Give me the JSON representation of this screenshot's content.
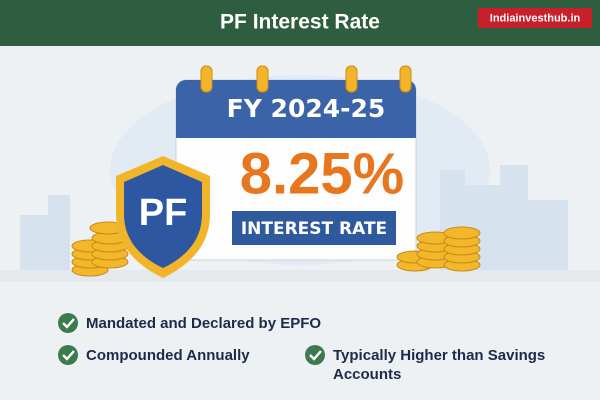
{
  "header": {
    "title": "PF Interest Rate",
    "brand": "Indiainvesthub.in"
  },
  "calendar": {
    "year": "FY 2024-25",
    "rate": "8.25%",
    "caption": "INTEREST RATE"
  },
  "shield": {
    "label": "PF"
  },
  "features": [
    "Mandated and Declared by EPFO",
    "Compounded Annually",
    "Typically Higher than Savings Accounts"
  ]
}
